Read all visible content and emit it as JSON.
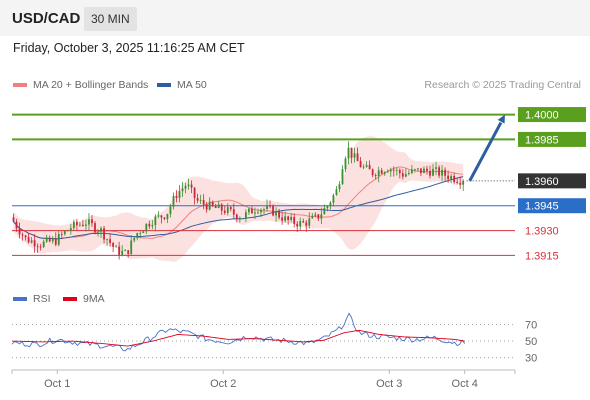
{
  "header": {
    "symbol": "USD/CAD",
    "timeframe": "30 MIN",
    "datetime": "Friday, October 3, 2025 11:16:25 AM CET"
  },
  "legend": {
    "items": [
      {
        "label": "MA 20 + Bollinger Bands",
        "color": "#f08080"
      },
      {
        "label": "MA 50",
        "color": "#2f5e9e"
      }
    ],
    "credit": "Research © 2025 Trading Central"
  },
  "rsi_legend": {
    "items": [
      {
        "label": "RSI",
        "color": "#4a72c8"
      },
      {
        "label": "9MA",
        "color": "#e0001b"
      }
    ]
  },
  "chart_data": [
    {
      "type": "candlestick",
      "title": "USD/CAD 30 MIN",
      "x_ticks": [
        "Oct 1",
        "Oct 2",
        "Oct 3",
        "Oct 4"
      ],
      "x_range": [
        0,
        100
      ],
      "x_tick_positions": [
        9,
        42,
        75,
        90
      ],
      "y_range": [
        1.3905,
        1.401
      ],
      "current_price": 1.396,
      "levels": [
        {
          "value": 1.4,
          "label": "1.4000",
          "style": "resistance",
          "color": "#5aa01e",
          "labeled_box": true
        },
        {
          "value": 1.3985,
          "label": "1.3985",
          "style": "resistance",
          "color": "#5aa01e",
          "labeled_box": true
        },
        {
          "value": 1.396,
          "label": "1.3960",
          "style": "current",
          "color": "#333333",
          "labeled_box": true
        },
        {
          "value": 1.3945,
          "label": "1.3945",
          "style": "pivot",
          "color": "#2b6ec8",
          "labeled_box": true
        },
        {
          "value": 1.393,
          "label": "1.3930",
          "style": "support",
          "color": "#d9303a",
          "labeled_box": false
        },
        {
          "value": 1.3915,
          "label": "1.3915",
          "style": "support",
          "color": "#d9303a",
          "labeled_box": false
        }
      ],
      "projection": {
        "from": [
          91,
          1.396
        ],
        "to": [
          98,
          1.4
        ],
        "color": "#2f5e9e"
      },
      "price_anchors": [
        [
          0,
          1.3938
        ],
        [
          3,
          1.3925
        ],
        [
          6,
          1.3922
        ],
        [
          9,
          1.3924
        ],
        [
          12,
          1.3932
        ],
        [
          15,
          1.3935
        ],
        [
          18,
          1.393
        ],
        [
          21,
          1.3918
        ],
        [
          23,
          1.3916
        ],
        [
          25,
          1.3928
        ],
        [
          28,
          1.3936
        ],
        [
          31,
          1.394
        ],
        [
          33,
          1.3952
        ],
        [
          35,
          1.3958
        ],
        [
          37,
          1.3948
        ],
        [
          40,
          1.3944
        ],
        [
          43,
          1.3942
        ],
        [
          46,
          1.3938
        ],
        [
          49,
          1.3944
        ],
        [
          52,
          1.3942
        ],
        [
          55,
          1.3936
        ],
        [
          58,
          1.3934
        ],
        [
          61,
          1.3938
        ],
        [
          63,
          1.3945
        ],
        [
          65,
          1.3955
        ],
        [
          66,
          1.397
        ],
        [
          67,
          1.398
        ],
        [
          68,
          1.3975
        ],
        [
          70,
          1.3968
        ],
        [
          72,
          1.3965
        ],
        [
          75,
          1.3968
        ],
        [
          78,
          1.3964
        ],
        [
          81,
          1.3966
        ],
        [
          84,
          1.3966
        ],
        [
          87,
          1.3963
        ],
        [
          90,
          1.396
        ]
      ]
    },
    {
      "type": "line",
      "title": "RSI",
      "y_ticks": [
        70,
        50,
        30
      ],
      "y_range": [
        20,
        85
      ],
      "series": [
        {
          "name": "RSI",
          "color": "#4a72c8",
          "anchors": [
            [
              0,
              48
            ],
            [
              5,
              46
            ],
            [
              9,
              52
            ],
            [
              14,
              47
            ],
            [
              19,
              44
            ],
            [
              23,
              40
            ],
            [
              27,
              52
            ],
            [
              31,
              64
            ],
            [
              35,
              60
            ],
            [
              39,
              52
            ],
            [
              43,
              49
            ],
            [
              47,
              56
            ],
            [
              51,
              52
            ],
            [
              55,
              50
            ],
            [
              59,
              47
            ],
            [
              62,
              53
            ],
            [
              65,
              64
            ],
            [
              67,
              80
            ],
            [
              69,
              60
            ],
            [
              72,
              56
            ],
            [
              76,
              54
            ],
            [
              80,
              52
            ],
            [
              84,
              54
            ],
            [
              88,
              48
            ],
            [
              90,
              48
            ]
          ]
        },
        {
          "name": "9MA",
          "color": "#e0001b",
          "anchors": [
            [
              0,
              50
            ],
            [
              6,
              49
            ],
            [
              12,
              50
            ],
            [
              18,
              47
            ],
            [
              23,
              44
            ],
            [
              28,
              50
            ],
            [
              33,
              58
            ],
            [
              38,
              56
            ],
            [
              43,
              52
            ],
            [
              48,
              53
            ],
            [
              53,
              51
            ],
            [
              58,
              49
            ],
            [
              62,
              51
            ],
            [
              66,
              60
            ],
            [
              69,
              63
            ],
            [
              73,
              58
            ],
            [
              78,
              55
            ],
            [
              83,
              54
            ],
            [
              88,
              52
            ],
            [
              90,
              50
            ]
          ]
        }
      ]
    }
  ]
}
